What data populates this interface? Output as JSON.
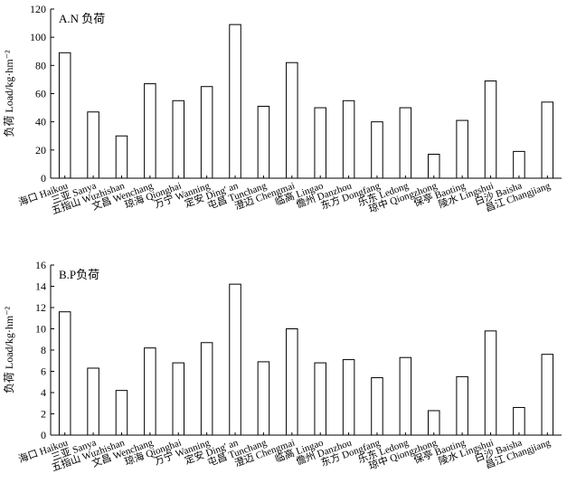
{
  "chart_data": [
    {
      "type": "bar",
      "title": "A.N 负荷",
      "ylabel": "负荷 Load/kg·hm⁻²",
      "ylim": [
        0,
        120
      ],
      "yticks": [
        0,
        20,
        40,
        60,
        80,
        100,
        120
      ],
      "grid": false,
      "categories": [
        "海口 Haikou",
        "三亚 Sanya",
        "五指山 Wuzhishan",
        "文昌 Wenchang",
        "琼海 Qionghai",
        "万宁 Wanning",
        "定安 Ding' an",
        "屯昌 Tunchang",
        "澄迈 Chengmai",
        "临高 Lingao",
        "儋州 Danzhou",
        "东方 Dongfang",
        "乐东 Ledong",
        "琼中 Qiongzhong",
        "保亭 Baoting",
        "陵水 Lingshui",
        "白沙 Baisha",
        "昌江 Changjiang"
      ],
      "values": [
        89,
        47,
        30,
        67,
        55,
        65,
        109,
        51,
        82,
        50,
        55,
        40,
        50,
        17,
        41,
        69,
        19,
        54
      ]
    },
    {
      "type": "bar",
      "title": "B.P负荷",
      "ylabel": "负荷 Load/kg·hm⁻²",
      "ylim": [
        0,
        16
      ],
      "yticks": [
        0,
        2,
        4,
        6,
        8,
        10,
        12,
        14,
        16
      ],
      "grid": false,
      "categories": [
        "海口 Haikou",
        "三亚 Sanya",
        "五指山 Wuzhishan",
        "文昌 Wenchang",
        "琼海 Qionghai",
        "万宁 Wanning",
        "定安 Ding' an",
        "屯昌 Tunchang",
        "澄迈 Chengmai",
        "临高 Lingao",
        "儋州 Danzhou",
        "东方 Dongfang",
        "乐东 Ledong",
        "琼中 Qiongzhong",
        "保亭 Baoting",
        "陵水 Lingshui",
        "白沙 Baisha",
        "昌江 Changjiang"
      ],
      "values": [
        11.6,
        6.3,
        4.2,
        8.2,
        6.8,
        8.7,
        14.2,
        6.9,
        10.0,
        6.8,
        7.1,
        5.4,
        7.3,
        2.3,
        5.5,
        9.8,
        2.6,
        7.6
      ]
    }
  ]
}
